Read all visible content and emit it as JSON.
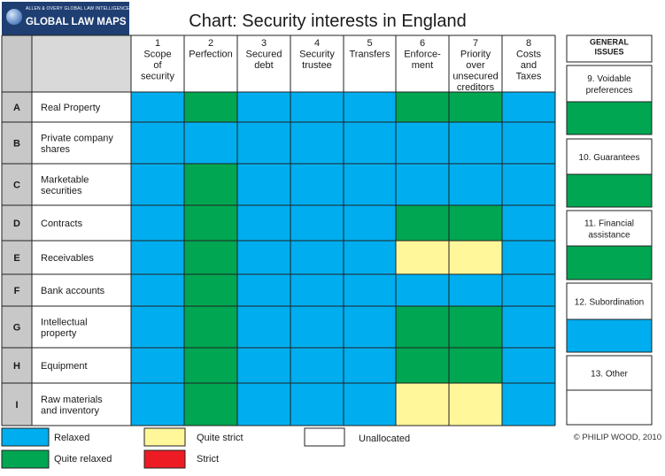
{
  "header": {
    "logo_small": "ALLEN & OVERY GLOBAL LAW INTELLIGENCE UNIT",
    "logo_big": "GLOBAL LAW MAPS",
    "title": "Chart: Security interests in England"
  },
  "copyright": "© PHILIP WOOD, 2010",
  "colors": {
    "relaxed": "#00aeef",
    "quite_relaxed": "#00a651",
    "quite_strict": "#fff799",
    "strict": "#ed1c24",
    "unallocated": "#ffffff",
    "header_gray": "#c8c8c8"
  },
  "chart_data": {
    "type": "table",
    "title": "Chart: Security interests in England",
    "columns": [
      {
        "num": "1",
        "label": [
          "Scope",
          "of",
          "security"
        ]
      },
      {
        "num": "2",
        "label": [
          "Perfection"
        ]
      },
      {
        "num": "3",
        "label": [
          "Secured",
          "debt"
        ]
      },
      {
        "num": "4",
        "label": [
          "Security",
          "trustee"
        ]
      },
      {
        "num": "5",
        "label": [
          "Transfers"
        ]
      },
      {
        "num": "6",
        "label": [
          "Enforce-",
          "ment"
        ]
      },
      {
        "num": "7",
        "label": [
          "Priority",
          "over",
          "unsecured",
          "creditors"
        ]
      },
      {
        "num": "8",
        "label": [
          "Costs",
          "and",
          "Taxes"
        ]
      }
    ],
    "rows": [
      {
        "letter": "A",
        "label": [
          "Real Property"
        ],
        "cells": [
          "relaxed",
          "quite_relaxed",
          "relaxed",
          "relaxed",
          "relaxed",
          "quite_relaxed",
          "quite_relaxed",
          "relaxed"
        ]
      },
      {
        "letter": "B",
        "label": [
          "Private company",
          "shares"
        ],
        "cells": [
          "relaxed",
          "relaxed",
          "relaxed",
          "relaxed",
          "relaxed",
          "relaxed",
          "relaxed",
          "relaxed"
        ]
      },
      {
        "letter": "C",
        "label": [
          "Marketable",
          "securities"
        ],
        "cells": [
          "relaxed",
          "quite_relaxed",
          "relaxed",
          "relaxed",
          "relaxed",
          "relaxed",
          "relaxed",
          "relaxed"
        ]
      },
      {
        "letter": "D",
        "label": [
          "Contracts"
        ],
        "cells": [
          "relaxed",
          "quite_relaxed",
          "relaxed",
          "relaxed",
          "relaxed",
          "quite_relaxed",
          "quite_relaxed",
          "relaxed"
        ]
      },
      {
        "letter": "E",
        "label": [
          "Receivables"
        ],
        "cells": [
          "relaxed",
          "quite_relaxed",
          "relaxed",
          "relaxed",
          "relaxed",
          "quite_strict",
          "quite_strict",
          "relaxed"
        ]
      },
      {
        "letter": "F",
        "label": [
          "Bank accounts"
        ],
        "cells": [
          "relaxed",
          "quite_relaxed",
          "relaxed",
          "relaxed",
          "relaxed",
          "relaxed",
          "relaxed",
          "relaxed"
        ]
      },
      {
        "letter": "G",
        "label": [
          "Intellectual",
          "property"
        ],
        "cells": [
          "relaxed",
          "quite_relaxed",
          "relaxed",
          "relaxed",
          "relaxed",
          "quite_relaxed",
          "quite_relaxed",
          "relaxed"
        ]
      },
      {
        "letter": "H",
        "label": [
          "Equipment"
        ],
        "cells": [
          "relaxed",
          "quite_relaxed",
          "relaxed",
          "relaxed",
          "relaxed",
          "quite_relaxed",
          "quite_relaxed",
          "relaxed"
        ]
      },
      {
        "letter": "I",
        "label": [
          "Raw materials",
          "and inventory"
        ],
        "cells": [
          "relaxed",
          "quite_relaxed",
          "relaxed",
          "relaxed",
          "relaxed",
          "quite_strict",
          "quite_strict",
          "relaxed"
        ]
      }
    ],
    "general_issues": {
      "header": [
        "GENERAL",
        "ISSUES"
      ],
      "items": [
        {
          "label": [
            "9. Voidable",
            "preferences"
          ],
          "value": "quite_relaxed"
        },
        {
          "label": [
            "10. Guarantees"
          ],
          "value": "quite_relaxed"
        },
        {
          "label": [
            "11. Financial",
            "assistance"
          ],
          "value": "quite_relaxed"
        },
        {
          "label": [
            "12. Subordination"
          ],
          "value": "relaxed"
        },
        {
          "label": [
            "13. Other"
          ],
          "value": "unallocated"
        }
      ]
    },
    "legend": [
      {
        "key": "relaxed",
        "label": "Relaxed"
      },
      {
        "key": "quite_relaxed",
        "label": "Quite relaxed"
      },
      {
        "key": "quite_strict",
        "label": "Quite strict"
      },
      {
        "key": "strict",
        "label": "Strict"
      },
      {
        "key": "unallocated",
        "label": "Unallocated"
      }
    ]
  }
}
